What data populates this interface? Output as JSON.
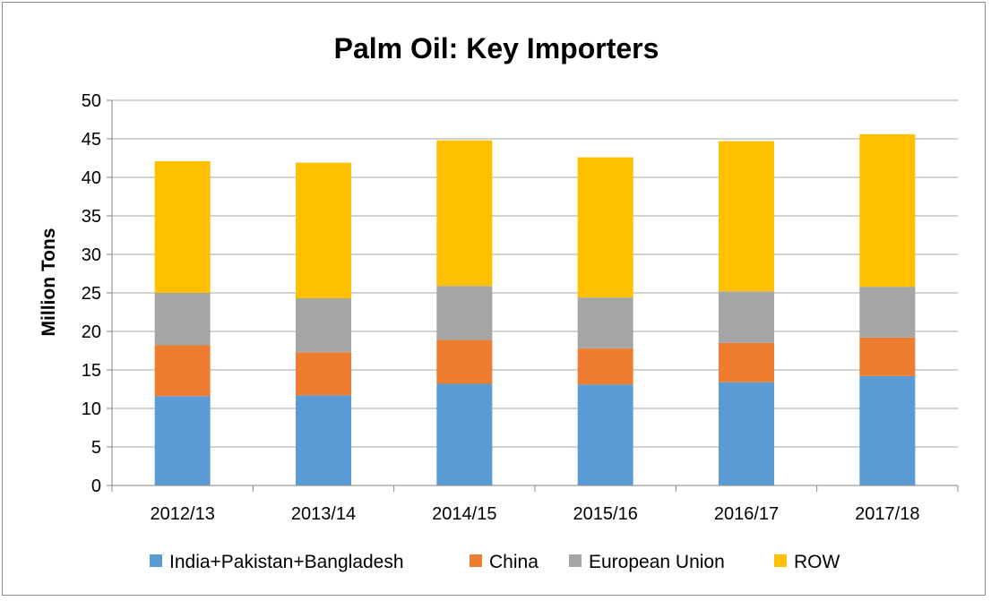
{
  "chart_data": {
    "type": "bar",
    "stacked": true,
    "title": "Palm Oil: Key Importers",
    "xlabel": "",
    "ylabel": "Million Tons",
    "ylim": [
      0,
      50
    ],
    "yticks": [
      0,
      5,
      10,
      15,
      20,
      25,
      30,
      35,
      40,
      45,
      50
    ],
    "grid": true,
    "legend_position": "bottom",
    "categories": [
      "2012/13",
      "2013/14",
      "2014/15",
      "2015/16",
      "2016/17",
      "2017/18"
    ],
    "series": [
      {
        "name": "India+Pakistan+Bangladesh",
        "color": "#5b9bd5",
        "values": [
          11.6,
          11.7,
          13.2,
          13.1,
          13.4,
          14.2
        ]
      },
      {
        "name": "China",
        "color": "#ed7d31",
        "values": [
          6.6,
          5.6,
          5.7,
          4.7,
          5.1,
          5.0
        ]
      },
      {
        "name": "European Union",
        "color": "#a5a5a5",
        "values": [
          6.8,
          7.0,
          7.0,
          6.6,
          6.7,
          6.6
        ]
      },
      {
        "name": "ROW",
        "color": "#ffc000",
        "values": [
          17.1,
          17.6,
          18.9,
          18.2,
          19.5,
          19.8
        ]
      }
    ]
  }
}
